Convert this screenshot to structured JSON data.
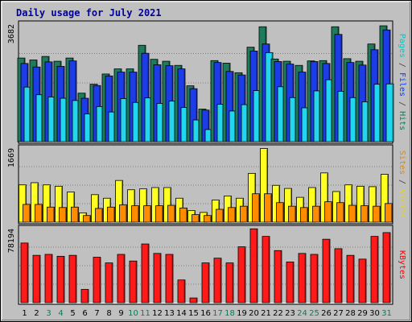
{
  "chart_data": {
    "type": "bar",
    "title": "Daily usage for July 2021",
    "days": [
      "1",
      "2",
      "3",
      "4",
      "5",
      "6",
      "7",
      "8",
      "9",
      "10",
      "11",
      "12",
      "13",
      "14",
      "15",
      "16",
      "17",
      "18",
      "19",
      "20",
      "21",
      "22",
      "23",
      "24",
      "25",
      "26",
      "27",
      "28",
      "29",
      "30",
      "31"
    ],
    "weekend_days": [
      "3",
      "4",
      "10",
      "11",
      "17",
      "18",
      "24",
      "25",
      "31"
    ],
    "panels": [
      {
        "id": "hits",
        "ymax": 3682,
        "max_label": "3682",
        "side_labels": [
          {
            "text": "Pages",
            "color": "#00c8c8"
          },
          {
            "text": " / ",
            "color": "#404040"
          },
          {
            "text": "Files",
            "color": "#0040ff"
          },
          {
            "text": " / ",
            "color": "#404040"
          },
          {
            "text": "Hits",
            "color": "#00805c"
          }
        ],
        "series": [
          {
            "name": "Hits",
            "color": "#1e7c5c",
            "values": [
              2620,
              2560,
              2670,
              2520,
              2620,
              1520,
              1800,
              2120,
              2280,
              2280,
              3020,
              2580,
              2520,
              2390,
              1750,
              1020,
              2540,
              2460,
              2160,
              2960,
              3600,
              2590,
              2520,
              2390,
              2530,
              2540,
              3600,
              2600,
              2520,
              3060,
              3630
            ]
          },
          {
            "name": "Files",
            "color": "#1c3ce8",
            "values": [
              2450,
              2340,
              2500,
              2360,
              2530,
              1360,
              1760,
              2060,
              2180,
              2180,
              2770,
              2410,
              2380,
              2280,
              1660,
              990,
              2480,
              2200,
              2090,
              2840,
              3060,
              2510,
              2430,
              2180,
              2510,
              2450,
              3360,
              2480,
              2400,
              2880,
              3500
            ]
          },
          {
            "name": "Pages",
            "color": "#22d6ee",
            "values": [
              1710,
              1470,
              1400,
              1360,
              1290,
              870,
              1100,
              930,
              1350,
              1230,
              1370,
              1200,
              1270,
              1070,
              680,
              380,
              1170,
              960,
              1160,
              1600,
              2790,
              1720,
              1380,
              1060,
              1590,
              1940,
              1580,
              1380,
              1250,
              1800,
              1810
            ]
          }
        ]
      },
      {
        "id": "visits",
        "ymax": 1669,
        "max_label": "1669",
        "side_labels": [
          {
            "text": "Sites",
            "color": "#e88600"
          },
          {
            "text": " / ",
            "color": "#404040"
          },
          {
            "text": "Visits",
            "color": "#e8d800"
          }
        ],
        "series": [
          {
            "name": "Visits",
            "color": "#ffff22",
            "values": [
              840,
              890,
              840,
              810,
              680,
              210,
              620,
              540,
              940,
              730,
              750,
              780,
              780,
              540,
              260,
              220,
              500,
              590,
              540,
              1100,
              1660,
              830,
              760,
              560,
              780,
              1110,
              690,
              840,
              810,
              800,
              1080
            ]
          },
          {
            "name": "Sites",
            "color": "#ff8c00",
            "values": [
              400,
              400,
              340,
              330,
              340,
              150,
              310,
              340,
              390,
              370,
              370,
              370,
              380,
              320,
              170,
              150,
              290,
              330,
              360,
              640,
              640,
              440,
              360,
              330,
              360,
              460,
              440,
              380,
              370,
              360,
              420
            ]
          }
        ]
      },
      {
        "id": "kbytes",
        "ymax": 78194,
        "max_label": "78194",
        "side_labels": [
          {
            "text": "KBytes",
            "color": "#ff0000"
          }
        ],
        "series": [
          {
            "name": "KBytes",
            "color": "#ff1a1a",
            "values": [
              63000,
              50000,
              51000,
              49000,
              50000,
              14000,
              48000,
              42000,
              51000,
              44000,
              62000,
              52000,
              51000,
              24000,
              5000,
              42000,
              47000,
              42000,
              59000,
              78000,
              70000,
              55000,
              43000,
              52000,
              51000,
              67000,
              57000,
              50000,
              46000,
              70000,
              74000
            ]
          }
        ]
      }
    ]
  }
}
